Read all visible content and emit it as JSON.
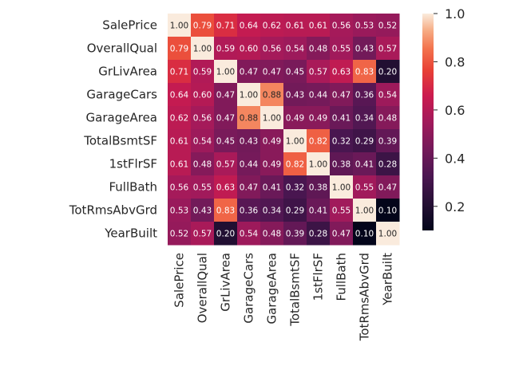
{
  "chart_data": {
    "type": "heatmap",
    "title": "",
    "xlabel": "",
    "ylabel": "",
    "labels": [
      "SalePrice",
      "OverallQual",
      "GrLivArea",
      "GarageCars",
      "GarageArea",
      "TotalBsmtSF",
      "1stFlrSF",
      "FullBath",
      "TotRmsAbvGrd",
      "YearBuilt"
    ],
    "matrix": [
      [
        1.0,
        0.79,
        0.71,
        0.64,
        0.62,
        0.61,
        0.61,
        0.56,
        0.53,
        0.52
      ],
      [
        0.79,
        1.0,
        0.59,
        0.6,
        0.56,
        0.54,
        0.48,
        0.55,
        0.43,
        0.57
      ],
      [
        0.71,
        0.59,
        1.0,
        0.47,
        0.47,
        0.45,
        0.57,
        0.63,
        0.83,
        0.2
      ],
      [
        0.64,
        0.6,
        0.47,
        1.0,
        0.88,
        0.43,
        0.44,
        0.47,
        0.36,
        0.54
      ],
      [
        0.62,
        0.56,
        0.47,
        0.88,
        1.0,
        0.49,
        0.49,
        0.41,
        0.34,
        0.48
      ],
      [
        0.61,
        0.54,
        0.45,
        0.43,
        0.49,
        1.0,
        0.82,
        0.32,
        0.29,
        0.39
      ],
      [
        0.61,
        0.48,
        0.57,
        0.44,
        0.49,
        0.82,
        1.0,
        0.38,
        0.41,
        0.28
      ],
      [
        0.56,
        0.55,
        0.63,
        0.47,
        0.41,
        0.32,
        0.38,
        1.0,
        0.55,
        0.47
      ],
      [
        0.53,
        0.43,
        0.83,
        0.36,
        0.34,
        0.29,
        0.41,
        0.55,
        1.0,
        0.1
      ],
      [
        0.52,
        0.57,
        0.2,
        0.54,
        0.48,
        0.39,
        0.28,
        0.47,
        0.1,
        1.0
      ]
    ],
    "value_format": "2 decimals",
    "colormap": "rocket",
    "colorbar": {
      "range": [
        0.1,
        1.0
      ],
      "ticks": [
        0.2,
        0.4,
        0.6,
        0.8,
        1.0
      ],
      "tick_labels": [
        "0.2",
        "0.4",
        "0.6",
        "0.8",
        "1.0"
      ]
    },
    "grid": false
  }
}
